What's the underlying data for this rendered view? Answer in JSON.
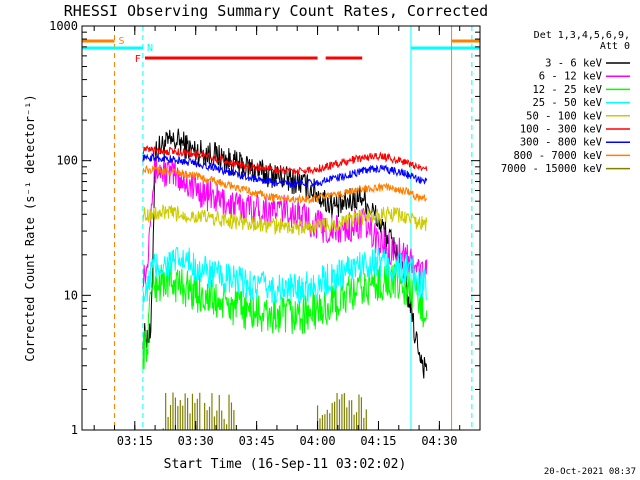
{
  "chart_data": {
    "type": "line",
    "title": "RHESSI Observing Summary Count Rates, Corrected",
    "xlabel": "Start Time (16-Sep-11 03:02:02)",
    "ylabel": "Corrected Count Rate (s⁻¹ detector⁻¹)",
    "yscale": "log",
    "ylim": [
      1,
      1000
    ],
    "xlim": [
      "03:02",
      "04:40"
    ],
    "xticks": [
      "03:15",
      "03:30",
      "03:45",
      "04:00",
      "04:15",
      "04:30"
    ],
    "yticks": [
      "1",
      "10",
      "100",
      "1000"
    ],
    "footer_date": "20-Oct-2021 08:37",
    "legend": {
      "placement": "right",
      "header_lines": [
        "Det 1,3,4,5,6,9,",
        "Att 0"
      ]
    },
    "flags": [
      {
        "label": "S",
        "color": "#ff8000"
      },
      {
        "label": "N",
        "color": "#00ffff"
      },
      {
        "label": "F",
        "color": "#ff0000"
      }
    ],
    "x_minutes": [
      15,
      16,
      17,
      18,
      21,
      24,
      27,
      30,
      33,
      36,
      39,
      42,
      45,
      48,
      51,
      54,
      57,
      60,
      63,
      66,
      69,
      72,
      75,
      78,
      81,
      82,
      83,
      84,
      85
    ],
    "series": [
      {
        "name": "3 - 6 keV",
        "color": "#000000",
        "values": [
          5.0,
          5.0,
          5.0,
          120,
          135,
          140,
          120,
          115,
          110,
          100,
          92,
          87,
          80,
          78,
          72,
          68,
          60,
          50,
          45,
          50,
          55,
          40,
          28,
          20,
          8,
          5,
          4,
          3,
          3
        ]
      },
      {
        "name": "6 - 12 keV",
        "color": "#ff00ff",
        "values": [
          15,
          15,
          55,
          85,
          82,
          75,
          65,
          57,
          52,
          48,
          45,
          45,
          44,
          43,
          42,
          38,
          35,
          31,
          30,
          32,
          35,
          27,
          23,
          21,
          18,
          16,
          15,
          15,
          15
        ]
      },
      {
        "name": "12 - 25 keV",
        "color": "#00ff00",
        "values": [
          4,
          4,
          12,
          12,
          13,
          12,
          11,
          10,
          9,
          8.5,
          8,
          7.5,
          7,
          7,
          7,
          7.2,
          7.5,
          8,
          9,
          10,
          11,
          12,
          13,
          12,
          11,
          10,
          8,
          8,
          8
        ]
      },
      {
        "name": "25 - 50 keV",
        "color": "#00ffff",
        "values": [
          10,
          10,
          16,
          16,
          17,
          18,
          17,
          15,
          14,
          13,
          12.5,
          12,
          11.5,
          11,
          11,
          11.5,
          12,
          13,
          14,
          16,
          17,
          18,
          17,
          16,
          15,
          13,
          12,
          12,
          12
        ]
      },
      {
        "name": "50 - 100 keV",
        "color": "#cccc00",
        "values": [
          40,
          40,
          40,
          40,
          41,
          40,
          39,
          38,
          37,
          36,
          35,
          34,
          33,
          33,
          32,
          32,
          32,
          33,
          34,
          36,
          38,
          39,
          40,
          39,
          37,
          35,
          34,
          34,
          34
        ]
      },
      {
        "name": "100 - 300 keV",
        "color": "#ff0000",
        "values": [
          120,
          120,
          120,
          120,
          118,
          116,
          114,
          110,
          105,
          98,
          93,
          90,
          88,
          86,
          84,
          84,
          86,
          90,
          95,
          100,
          105,
          108,
          106,
          100,
          95,
          90,
          88,
          88,
          88
        ]
      },
      {
        "name": "300 - 800 keV",
        "color": "#0000ff",
        "values": [
          105,
          105,
          105,
          105,
          103,
          100,
          97,
          93,
          88,
          83,
          78,
          74,
          71,
          69,
          67,
          67,
          68,
          71,
          75,
          79,
          84,
          87,
          86,
          82,
          77,
          73,
          71,
          71,
          71
        ]
      },
      {
        "name": "800 - 7000 keV",
        "color": "#ff8000",
        "values": [
          85,
          85,
          85,
          85,
          83,
          81,
          78,
          74,
          70,
          66,
          62,
          58,
          55,
          53,
          52,
          52,
          52,
          54,
          56,
          59,
          62,
          63,
          63,
          61,
          58,
          55,
          53,
          53,
          53
        ]
      },
      {
        "name": "7000 - 15000 keV",
        "color": "#808000",
        "values": [
          null,
          null,
          null,
          null,
          null,
          null,
          null,
          null,
          null,
          null,
          null,
          null,
          null,
          null,
          null,
          null,
          null,
          null,
          null,
          null,
          null,
          null,
          null,
          null,
          null,
          null,
          null,
          null,
          null
        ]
      }
    ]
  }
}
